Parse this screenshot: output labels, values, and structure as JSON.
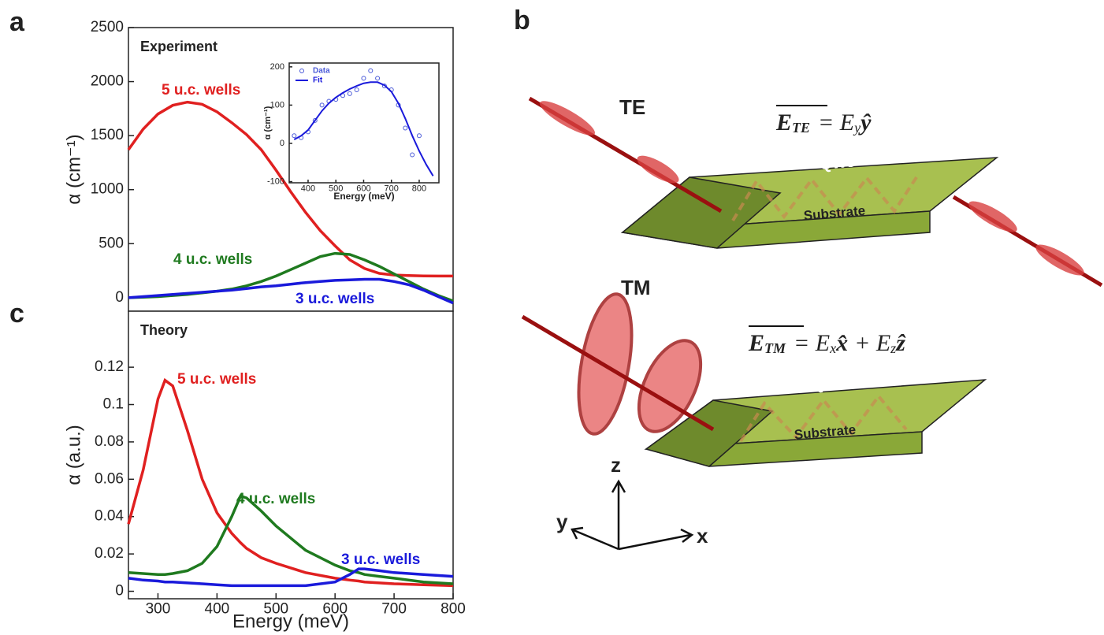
{
  "chart_data": [
    {
      "type": "line",
      "panel": "a",
      "annotation": "Experiment",
      "y_label": "α (cm⁻¹)",
      "xlim": [
        250,
        800
      ],
      "ylim": [
        -125,
        2500
      ],
      "yticks": [
        0,
        500,
        1000,
        1500,
        2000,
        2500
      ],
      "x": [
        250,
        275,
        300,
        325,
        350,
        375,
        400,
        425,
        450,
        475,
        500,
        525,
        550,
        575,
        600,
        625,
        650,
        675,
        700,
        725,
        750,
        775,
        800
      ],
      "series": [
        {
          "name": "5 u.c. wells",
          "color": "#e02020",
          "values": [
            1370,
            1560,
            1700,
            1780,
            1810,
            1790,
            1720,
            1620,
            1510,
            1370,
            1180,
            980,
            790,
            620,
            480,
            350,
            270,
            225,
            210,
            205,
            202,
            200,
            200
          ]
        },
        {
          "name": "4 u.c. wells",
          "color": "#1f7a1f",
          "values": [
            0,
            5,
            10,
            20,
            30,
            45,
            60,
            80,
            110,
            150,
            200,
            260,
            320,
            380,
            410,
            400,
            350,
            290,
            220,
            150,
            80,
            20,
            -30
          ]
        },
        {
          "name": "3 u.c. wells",
          "color": "#1a1adb",
          "values": [
            0,
            10,
            20,
            30,
            40,
            50,
            60,
            70,
            85,
            100,
            110,
            125,
            140,
            150,
            160,
            165,
            170,
            170,
            150,
            120,
            70,
            10,
            -50
          ]
        }
      ]
    },
    {
      "type": "line",
      "x_label": "Energy (meV)",
      "y_label": "α (cm⁻¹)",
      "legend": "upper-left",
      "xlim": [
        332,
        871
      ],
      "ylim": [
        -103,
        210
      ],
      "xticks": [
        400,
        500,
        600,
        700,
        800
      ],
      "yticks": [
        -100,
        0,
        100,
        200
      ],
      "x": [
        350,
        375,
        400,
        425,
        450,
        475,
        500,
        525,
        550,
        575,
        600,
        625,
        650,
        675,
        700,
        725,
        750,
        775,
        800,
        825,
        850
      ],
      "series": [
        {
          "name": "Data",
          "color": "#4a5ad8",
          "marker": "circle",
          "values": [
            20,
            15,
            30,
            60,
            100,
            110,
            115,
            125,
            130,
            140,
            170,
            190,
            170,
            150,
            140,
            100,
            40,
            -30,
            20,
            null,
            null
          ]
        },
        {
          "name": "Fit",
          "color": "#1a1adb",
          "values": [
            10,
            20,
            35,
            60,
            85,
            105,
            120,
            132,
            142,
            150,
            157,
            160,
            160,
            152,
            135,
            105,
            65,
            20,
            -20,
            -55,
            -85
          ]
        }
      ]
    },
    {
      "type": "line",
      "panel": "c",
      "annotation": "Theory",
      "x_label": "Energy (meV)",
      "y_label": "α (a.u.)",
      "xlim": [
        250,
        800
      ],
      "ylim": [
        -0.004,
        0.15
      ],
      "xticks": [
        300,
        400,
        500,
        600,
        700,
        800
      ],
      "yticks": [
        0,
        0.02,
        0.04,
        0.06,
        0.08,
        0.1,
        0.12
      ],
      "x": [
        250,
        275,
        300,
        312,
        325,
        350,
        375,
        400,
        425,
        440,
        450,
        475,
        500,
        550,
        600,
        625,
        640,
        650,
        675,
        700,
        750,
        800
      ],
      "series": [
        {
          "name": "5 u.c. wells",
          "color": "#e02020",
          "values": [
            0.036,
            0.065,
            0.103,
            0.113,
            0.11,
            0.086,
            0.06,
            0.042,
            0.031,
            0.026,
            0.023,
            0.018,
            0.015,
            0.01,
            0.007,
            0.006,
            0.0055,
            0.005,
            0.0045,
            0.004,
            0.0035,
            0.003
          ]
        },
        {
          "name": "4 u.c. wells",
          "color": "#1f7a1f",
          "values": [
            0.01,
            0.0095,
            0.009,
            0.009,
            0.0095,
            0.011,
            0.015,
            0.024,
            0.04,
            0.051,
            0.05,
            0.043,
            0.035,
            0.022,
            0.014,
            0.011,
            0.01,
            0.009,
            0.008,
            0.007,
            0.005,
            0.004
          ]
        },
        {
          "name": "3 u.c. wells",
          "color": "#1a1adb",
          "values": [
            0.007,
            0.006,
            0.0055,
            0.005,
            0.005,
            0.0045,
            0.004,
            0.0035,
            0.003,
            0.003,
            0.003,
            0.003,
            0.003,
            0.003,
            0.005,
            0.009,
            0.012,
            0.012,
            0.011,
            0.01,
            0.009,
            0.008
          ]
        }
      ]
    }
  ],
  "diagram": {
    "panel": "b",
    "te_label": "TE",
    "tm_label": "TM",
    "te_equation": {
      "lhs": "E",
      "lhs_sub": "TE",
      "rhs": "= E",
      "rhs_sub": "y",
      "rhs_vec": "ŷ"
    },
    "tm_equation": {
      "lhs": "E",
      "lhs_sub": "TM",
      "rhs": "= E",
      "rhs_sub": "x",
      "rhs_vec": "x̂",
      "rhs2": "+ E",
      "rhs2_sub": "z",
      "rhs2_vec": "ẑ"
    },
    "qws_label_top": "QWs",
    "substrate_label_top": "Substrate",
    "qws_label_bottom": "QWs",
    "substrate_label_bottom": "Substrate",
    "axis_z": "z",
    "axis_y": "y",
    "axis_x": "x"
  }
}
